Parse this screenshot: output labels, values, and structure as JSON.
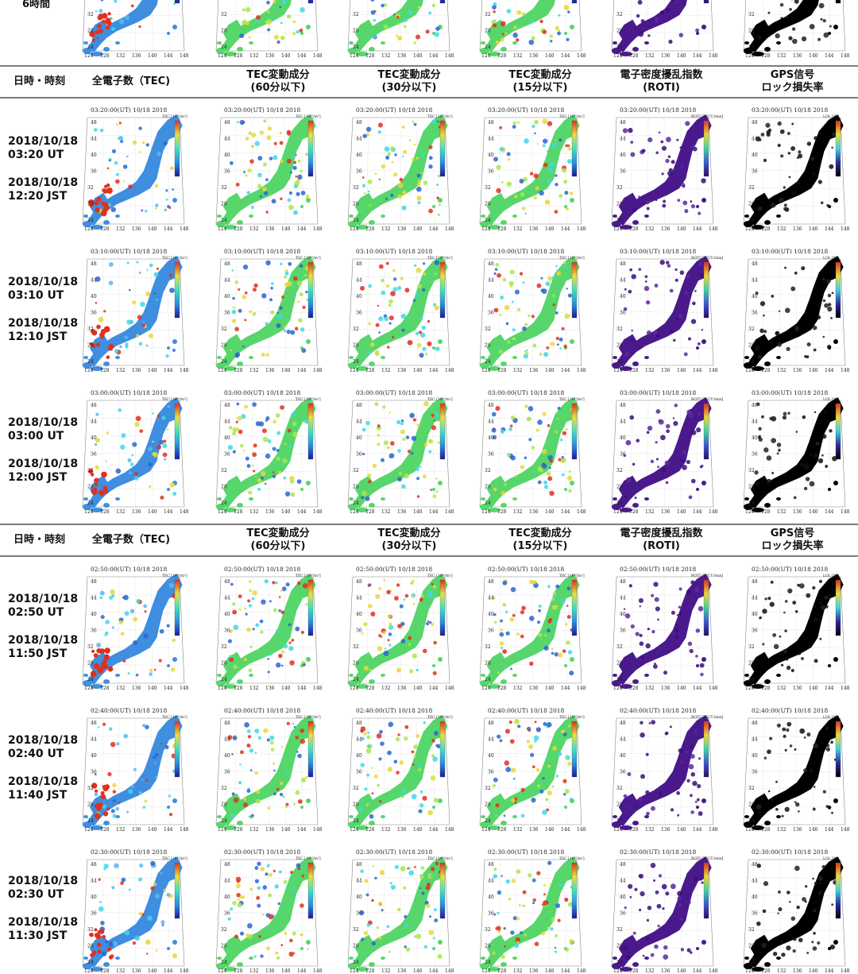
{
  "top_partial_label": "6時間",
  "header": {
    "col0": "日時・時刻",
    "col1": "全電子数（TEC)",
    "col2": [
      "TEC変動成分",
      "(60分以下)"
    ],
    "col3": [
      "TEC変動成分",
      "(30分以下)"
    ],
    "col4": [
      "TEC変動成分",
      "(15分以下)"
    ],
    "col5": [
      "電子密度擾乱指数",
      "(ROTI)"
    ],
    "col6": [
      "GPS信号",
      "ロック損失率"
    ]
  },
  "axis_ticks_x": [
    "124",
    "128",
    "132",
    "136",
    "140",
    "144",
    "148"
  ],
  "axis_ticks_y": [
    "48",
    "44",
    "40",
    "36",
    "32",
    "28",
    "24"
  ],
  "colorbar_labels": {
    "tec": "TEC [10¹⁶/m²]",
    "dtec": "TEC [10¹⁶/m²]",
    "roti": "ROTI [TECU/min]",
    "lol": "LOL [%]"
  },
  "colors": {
    "tec_bg": "#3f8ee0",
    "dtec_bg": "#57d66b",
    "roti_bg": "#4a1a8c",
    "lol_bg": "#000000",
    "red": "#e0301e",
    "yellow": "#e8d83a",
    "cyan": "#40d8e8"
  },
  "rows": [
    {
      "utc_title": "03:20:00(UT)  10/18 2018",
      "date1": "2018/10/18",
      "time1": "03:20 UT",
      "date2": "2018/10/18",
      "time2": "12:20 JST"
    },
    {
      "utc_title": "03:10:00(UT)  10/18 2018",
      "date1": "2018/10/18",
      "time1": "03:10 UT",
      "date2": "2018/10/18",
      "time2": "12:10 JST"
    },
    {
      "utc_title": "03:00:00(UT)  10/18 2018",
      "date1": "2018/10/18",
      "time1": "03:00 UT",
      "date2": "2018/10/18",
      "time2": "12:00 JST"
    },
    {
      "utc_title": "02:50:00(UT)  10/18 2018",
      "date1": "2018/10/18",
      "time1": "02:50 UT",
      "date2": "2018/10/18",
      "time2": "11:50 JST"
    },
    {
      "utc_title": "02:40:00(UT)  10/18 2018",
      "date1": "2018/10/18",
      "time1": "02:40 UT",
      "date2": "2018/10/18",
      "time2": "11:40 JST"
    },
    {
      "utc_title": "02:30:00(UT)  10/18 2018",
      "date1": "2018/10/18",
      "time1": "02:30 UT",
      "date2": "2018/10/18",
      "time2": "11:30 JST"
    }
  ],
  "chart_data": {
    "type": "heatmap",
    "description_units": "maps of Japan; x = longitude (deg E), y = latitude (deg N)",
    "xlim": [
      124,
      148
    ],
    "ylim": [
      24,
      48
    ],
    "panels": [
      "TEC",
      "TEC variation (60 min)",
      "TEC variation (30 min)",
      "TEC variation (15 min)",
      "ROTI",
      "GPS loss of lock"
    ],
    "times_ut": [
      "03:20",
      "03:10",
      "03:00",
      "02:50",
      "02:40",
      "02:30"
    ]
  }
}
